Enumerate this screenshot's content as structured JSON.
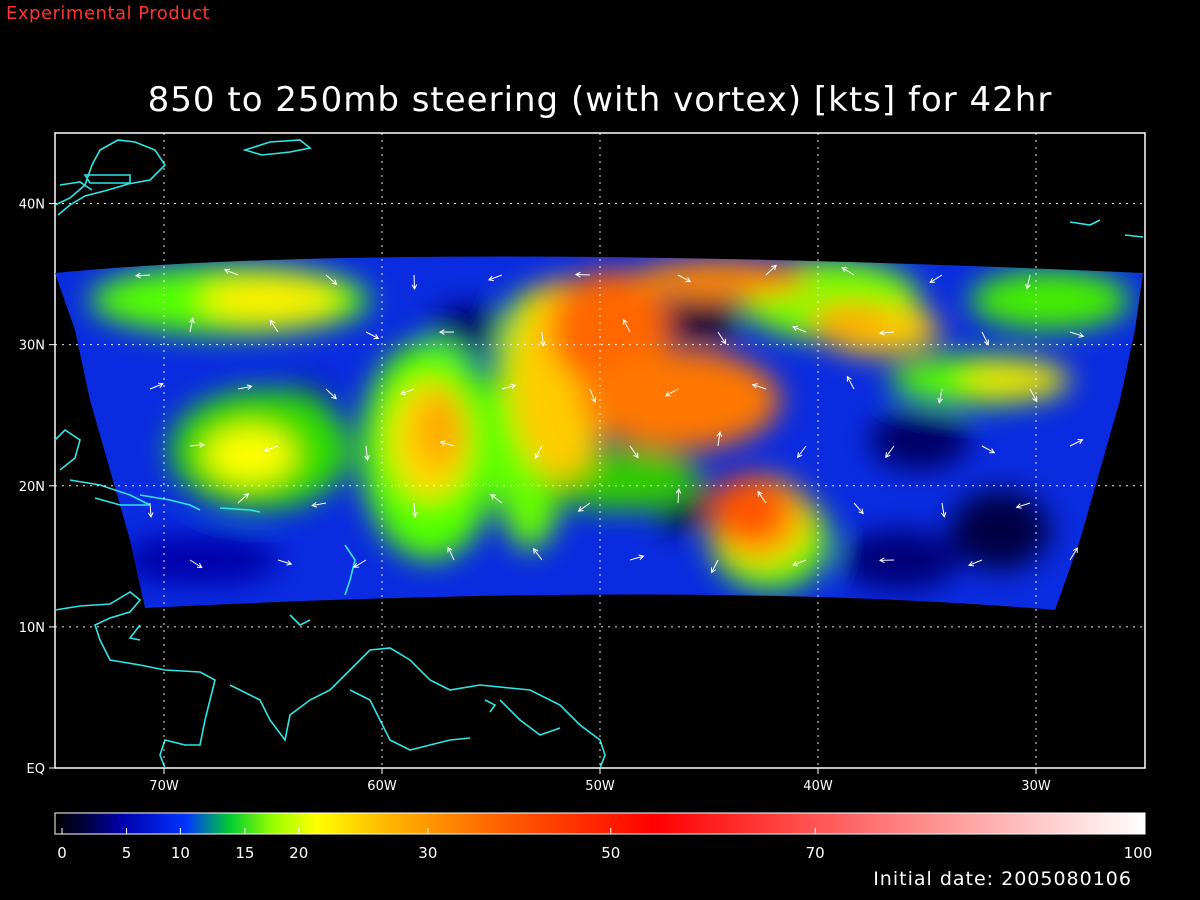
{
  "header": {
    "tag": "Experimental Product",
    "title": "850 to 250mb steering (with vortex) [kts] for 42hr"
  },
  "colors": {
    "tag": "#ff3333",
    "coast": "#2ee6e6",
    "frame": "#ffffff",
    "grid": "#ffffff"
  },
  "map": {
    "lon_range": [
      -75,
      -25
    ],
    "lat_range": [
      0,
      45
    ],
    "lat_ticks": [
      {
        "value": 0,
        "label": "EQ"
      },
      {
        "value": 10,
        "label": "10N"
      },
      {
        "value": 20,
        "label": "20N"
      },
      {
        "value": 30,
        "label": "30N"
      },
      {
        "value": 40,
        "label": "40N"
      }
    ],
    "lon_ticks": [
      {
        "value": -70,
        "label": "70W"
      },
      {
        "value": -60,
        "label": "60W"
      },
      {
        "value": -50,
        "label": "50W"
      },
      {
        "value": -40,
        "label": "40W"
      },
      {
        "value": -30,
        "label": "30W"
      }
    ],
    "grid": "dotted"
  },
  "colorbar": {
    "ticks": [
      {
        "value": 0,
        "label": "0"
      },
      {
        "value": 5,
        "label": "5"
      },
      {
        "value": 10,
        "label": "10"
      },
      {
        "value": 15,
        "label": "15"
      },
      {
        "value": 20,
        "label": "20"
      },
      {
        "value": 30,
        "label": "30"
      },
      {
        "value": 50,
        "label": "50"
      },
      {
        "value": 70,
        "label": "70"
      },
      {
        "value": 100,
        "label": "100"
      }
    ]
  },
  "footer": {
    "initial_date": "Initial date: 2005080106"
  }
}
